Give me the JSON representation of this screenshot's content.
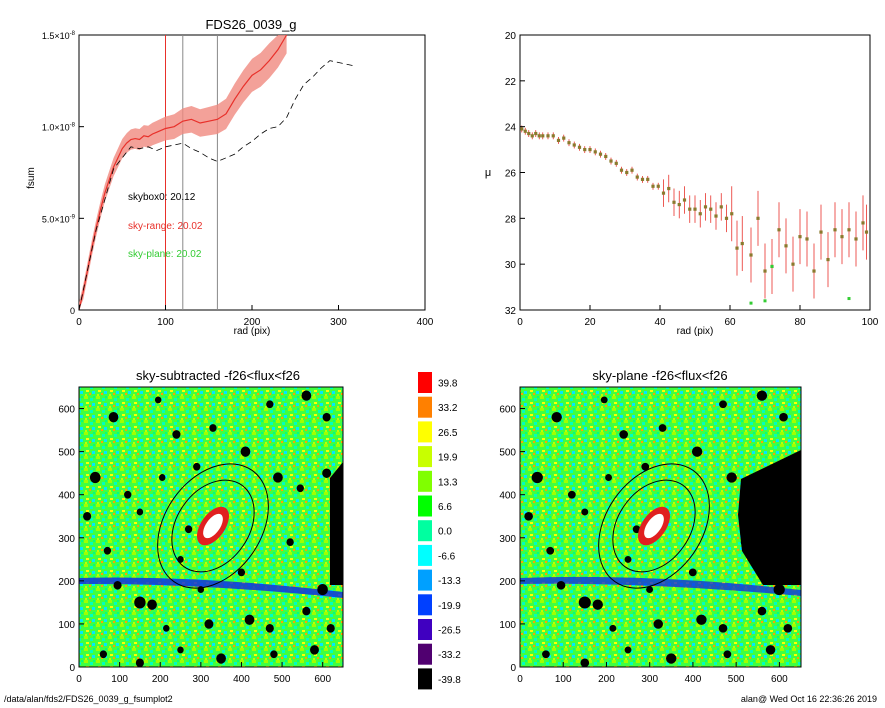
{
  "footer": {
    "path": "/data/alan/fds2/FDS26_0039_g_fsumplot2",
    "stamp": "alan@  Wed Oct 16 22:36:26 2019"
  },
  "colors": {
    "profile": "#e8302a",
    "band": "#f08a80",
    "ref": "#555555",
    "sky_range": "#e8302a",
    "sky_plane": "#33cc33",
    "points": "#8a7a2e"
  },
  "chart_data": [
    {
      "type": "line",
      "title": "FDS26_0039_g",
      "xlabel": "rad (pix)",
      "ylabel": "fsum",
      "xlim": [
        0,
        400
      ],
      "ylim": [
        0,
        1.5e-08
      ],
      "xticks": [
        "0",
        "100",
        "200",
        "300",
        "400"
      ],
      "yticks": [
        "0",
        "5.0×10",
        "1.0×10",
        "1.5×10"
      ],
      "ytick_exponents": [
        "",
        "-9",
        "-8",
        "-8"
      ],
      "vlines": [
        100,
        120,
        160
      ],
      "annotations": [
        {
          "text": "skybox0: 20.12",
          "color": "#000000"
        },
        {
          "text": "sky-range: 20.02",
          "color": "#e8302a"
        },
        {
          "text": "sky-plane: 20.02",
          "color": "#33cc33"
        }
      ],
      "series": [
        {
          "style": "solid",
          "x": [
            0,
            5,
            10,
            15,
            20,
            25,
            30,
            35,
            40,
            45,
            50,
            55,
            60,
            65,
            70,
            75,
            80,
            85,
            90,
            95,
            100,
            110,
            120,
            130,
            140,
            150,
            160,
            170,
            180,
            190,
            200,
            210,
            220,
            230,
            240
          ],
          "y": [
            0,
            1e-09,
            2.2e-09,
            3.4e-09,
            4.5e-09,
            5.5e-09,
            6.4e-09,
            7.1e-09,
            7.8e-09,
            8.3e-09,
            8.8e-09,
            9.1e-09,
            9.3e-09,
            9.35e-09,
            9.3e-09,
            9.5e-09,
            9.45e-09,
            9.6e-09,
            9.7e-09,
            9.8e-09,
            9.9e-09,
            1e-08,
            1.03e-08,
            1.04e-08,
            1.02e-08,
            1.03e-08,
            1.04e-08,
            1.07e-08,
            1.15e-08,
            1.22e-08,
            1.28e-08,
            1.31e-08,
            1.36e-08,
            1.42e-08,
            1.5e-08
          ]
        },
        {
          "style": "dashed",
          "x": [
            0,
            20,
            40,
            60,
            70,
            80,
            90,
            100,
            110,
            120,
            130,
            140,
            150,
            160,
            170,
            180,
            190,
            200,
            210,
            220,
            230,
            240,
            250,
            260,
            270,
            280,
            290,
            300,
            310,
            320
          ],
          "y": [
            0,
            4.4e-09,
            7.7e-09,
            8.9e-09,
            8.8e-09,
            8.9e-09,
            8.7e-09,
            8.9e-09,
            9e-09,
            9.1e-09,
            8.8e-09,
            8.6e-09,
            8.3e-09,
            8.1e-09,
            8.3e-09,
            8.5e-09,
            8.9e-09,
            9.2e-09,
            9.6e-09,
            9.9e-09,
            1e-08,
            1.05e-08,
            1.15e-08,
            1.23e-08,
            1.27e-08,
            1.32e-08,
            1.36e-08,
            1.35e-08,
            1.34e-08,
            1.33e-08
          ]
        }
      ]
    },
    {
      "type": "scatter",
      "xlabel": "rad (pix)",
      "ylabel": "μ",
      "xlim": [
        0,
        100
      ],
      "ylim": [
        32,
        20
      ],
      "xticks": [
        "0",
        "20",
        "40",
        "60",
        "80",
        "100"
      ],
      "yticks": [
        "20",
        "22",
        "24",
        "26",
        "28",
        "30",
        "32"
      ],
      "points": [
        [
          0.5,
          24.1
        ],
        [
          1.5,
          24.2
        ],
        [
          2.5,
          24.3
        ],
        [
          3.5,
          24.4
        ],
        [
          4.5,
          24.3
        ],
        [
          5.5,
          24.4
        ],
        [
          6.5,
          24.4
        ],
        [
          8,
          24.4
        ],
        [
          9.5,
          24.4
        ],
        [
          11,
          24.6
        ],
        [
          12.5,
          24.5
        ],
        [
          14,
          24.7
        ],
        [
          15.5,
          24.8
        ],
        [
          17,
          24.9
        ],
        [
          18.5,
          25.0
        ],
        [
          20,
          25.0
        ],
        [
          21.5,
          25.1
        ],
        [
          23,
          25.2
        ],
        [
          24.5,
          25.3
        ],
        [
          26,
          25.5
        ],
        [
          27.5,
          25.6
        ],
        [
          29,
          25.9
        ],
        [
          30.5,
          26.0
        ],
        [
          32,
          25.9
        ],
        [
          33.5,
          26.2
        ],
        [
          35,
          26.3
        ],
        [
          36.5,
          26.3
        ],
        [
          38,
          26.6
        ],
        [
          39.5,
          26.6
        ],
        [
          41,
          26.9
        ],
        [
          42.5,
          26.7
        ],
        [
          44,
          27.3
        ],
        [
          45.5,
          27.4
        ],
        [
          47,
          27.2
        ],
        [
          48.5,
          27.6
        ],
        [
          50,
          27.6
        ],
        [
          51.5,
          27.8
        ],
        [
          53,
          27.5
        ],
        [
          54.5,
          27.6
        ],
        [
          56,
          27.9
        ],
        [
          57.5,
          27.5
        ],
        [
          59,
          28.0
        ],
        [
          60.5,
          27.8
        ],
        [
          62,
          29.3
        ],
        [
          63.5,
          29.1
        ],
        [
          66,
          29.6
        ],
        [
          68,
          28.0
        ],
        [
          70,
          30.3
        ],
        [
          72,
          30.1
        ],
        [
          74,
          28.5
        ],
        [
          76,
          29.2
        ],
        [
          78,
          30.0
        ],
        [
          80,
          28.8
        ],
        [
          82,
          28.9
        ],
        [
          84,
          30.3
        ],
        [
          86,
          28.6
        ],
        [
          88,
          29.8
        ],
        [
          90,
          28.5
        ],
        [
          92,
          28.8
        ],
        [
          94,
          28.5
        ],
        [
          96,
          28.9
        ],
        [
          98,
          28.2
        ],
        [
          99,
          28.6
        ]
      ],
      "green_points": [
        [
          66,
          31.7
        ],
        [
          70,
          31.6
        ],
        [
          72,
          30.1
        ],
        [
          94,
          31.5
        ]
      ]
    },
    {
      "type": "heatmap",
      "title": "sky-subtracted -f26<flux<f26",
      "xlim": [
        0,
        650
      ],
      "ylim": [
        0,
        650
      ],
      "xticks": [
        "0",
        "100",
        "200",
        "300",
        "400",
        "500",
        "600"
      ],
      "yticks": [
        "0",
        "100",
        "200",
        "300",
        "400",
        "500",
        "600"
      ]
    },
    {
      "type": "heatmap",
      "title": "sky-plane -f26<flux<f26",
      "xlim": [
        0,
        650
      ],
      "ylim": [
        0,
        650
      ],
      "xticks": [
        "0",
        "100",
        "200",
        "300",
        "400",
        "500",
        "600"
      ],
      "yticks": [
        "0",
        "100",
        "200",
        "300",
        "400",
        "500",
        "600"
      ]
    }
  ],
  "colorbar": {
    "labels": [
      "39.8",
      "33.2",
      "26.5",
      "19.9",
      "13.3",
      "6.6",
      "0.0",
      "-6.6",
      "-13.3",
      "-19.9",
      "-26.5",
      "-33.2",
      "-39.8"
    ],
    "colors": [
      "#ff0000",
      "#ff8000",
      "#ffff00",
      "#c8ff00",
      "#80ff00",
      "#00ff00",
      "#00ffa0",
      "#00ffff",
      "#00a0ff",
      "#0040ff",
      "#4000c0",
      "#500070",
      "#000000"
    ]
  }
}
